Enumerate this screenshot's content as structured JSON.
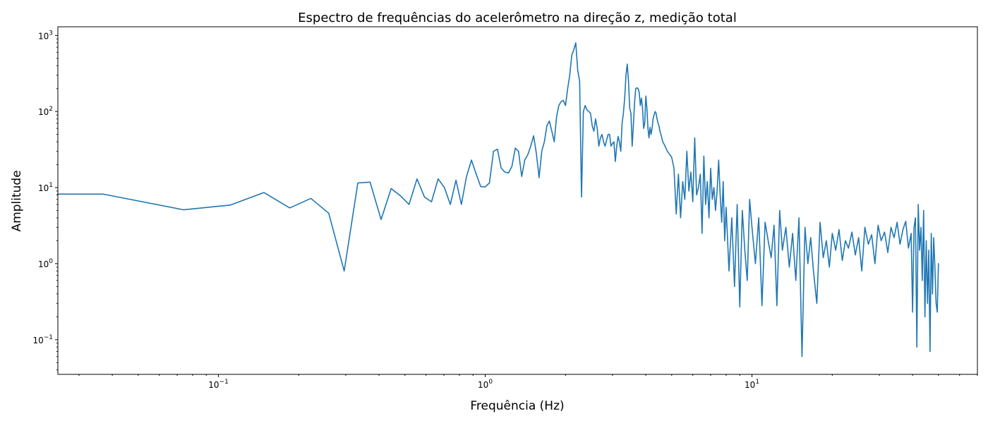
{
  "chart_data": {
    "type": "line",
    "title": "Espectro de frequências do acelerômetro na direção z, medição total",
    "xlabel": "Frequência (Hz)",
    "ylabel": "Amplitude",
    "xscale": "log",
    "yscale": "log",
    "xlim": [
      0.025,
      70
    ],
    "ylim": [
      0.035,
      1300
    ],
    "grid": false,
    "legend": "none",
    "color": "#1f77b4",
    "x_ticks": [
      {
        "value": 0.1,
        "base": "10",
        "exp": "−1"
      },
      {
        "value": 1,
        "base": "10",
        "exp": "0"
      },
      {
        "value": 10,
        "base": "10",
        "exp": "1"
      }
    ],
    "y_ticks": [
      {
        "value": 0.1,
        "base": "10",
        "exp": "−1"
      },
      {
        "value": 1,
        "base": "10",
        "exp": "0"
      },
      {
        "value": 10,
        "base": "10",
        "exp": "1"
      },
      {
        "value": 100,
        "base": "10",
        "exp": "2"
      },
      {
        "value": 1000,
        "base": "10",
        "exp": "3"
      }
    ],
    "series": [
      {
        "x": [
          0.025,
          0.037,
          0.074,
          0.111,
          0.148,
          0.185,
          0.222,
          0.259,
          0.296,
          0.333,
          0.37,
          0.407,
          0.444,
          0.481,
          0.518,
          0.555,
          0.592,
          0.629,
          0.666,
          0.703,
          0.74,
          0.777,
          0.814,
          0.851,
          0.888,
          0.925,
          0.962,
          1.0,
          1.037,
          1.074,
          1.111,
          1.148,
          1.185,
          1.222,
          1.259,
          1.296,
          1.333,
          1.37,
          1.407,
          1.444,
          1.481,
          1.518,
          1.555,
          1.592,
          1.629,
          1.666,
          1.703,
          1.74,
          1.777,
          1.814,
          1.851,
          1.888,
          1.925,
          1.962,
          2.0,
          2.037,
          2.074,
          2.111,
          2.148,
          2.185,
          2.222,
          2.259,
          2.296,
          2.333,
          2.37,
          2.407,
          2.444,
          2.481,
          2.518,
          2.555,
          2.592,
          2.629,
          2.666,
          2.703,
          2.74,
          2.777,
          2.814,
          2.851,
          2.888,
          2.925,
          2.962,
          3.0,
          3.037,
          3.074,
          3.111,
          3.148,
          3.185,
          3.222,
          3.259,
          3.296,
          3.333,
          3.37,
          3.407,
          3.444,
          3.481,
          3.518,
          3.555,
          3.592,
          3.629,
          3.666,
          3.703,
          3.74,
          3.777,
          3.814,
          3.851,
          3.888,
          3.925,
          3.962,
          4.0,
          4.037,
          4.074,
          4.111,
          4.148,
          4.185,
          4.222,
          4.259,
          4.296,
          4.333,
          4.37,
          4.407,
          4.444,
          4.481,
          4.518,
          4.555,
          4.592,
          4.629,
          4.666,
          4.703,
          4.74,
          4.777,
          4.814,
          4.851,
          4.888,
          4.925,
          4.962,
          5.0,
          5.1,
          5.2,
          5.3,
          5.4,
          5.5,
          5.6,
          5.7,
          5.8,
          5.9,
          6.0,
          6.1,
          6.2,
          6.3,
          6.4,
          6.5,
          6.6,
          6.7,
          6.8,
          6.9,
          7.0,
          7.1,
          7.2,
          7.3,
          7.4,
          7.5,
          7.6,
          7.7,
          7.8,
          7.9,
          8.0,
          8.2,
          8.4,
          8.6,
          8.8,
          9.0,
          9.2,
          9.4,
          9.6,
          9.8,
          10.0,
          10.3,
          10.6,
          10.9,
          11.2,
          11.5,
          11.8,
          12.1,
          12.4,
          12.7,
          13.0,
          13.4,
          13.8,
          14.2,
          14.6,
          15.0,
          15.4,
          15.8,
          16.2,
          16.6,
          17.0,
          17.5,
          18.0,
          18.5,
          19.0,
          19.5,
          20.0,
          20.6,
          21.2,
          21.8,
          22.4,
          23.0,
          23.7,
          24.4,
          25.1,
          25.8,
          26.5,
          27.3,
          28.1,
          28.9,
          29.7,
          30.5,
          31.4,
          32.3,
          33.2,
          34.1,
          35.0,
          35.9,
          36.8,
          37.7,
          38.6,
          39.5,
          40.0,
          40.5,
          41.0,
          41.5,
          42.0,
          42.5,
          43.0,
          43.5,
          44.0,
          44.5,
          45.0,
          45.5,
          46.0,
          46.5,
          47.0,
          47.5,
          48.0,
          48.5,
          49.0,
          49.5,
          50.0
        ],
        "values": [
          8.2,
          8.2,
          5.1,
          5.9,
          8.6,
          5.4,
          7.2,
          4.6,
          0.8,
          11.5,
          11.8,
          3.8,
          9.7,
          7.8,
          6.0,
          13.0,
          7.5,
          6.5,
          13.0,
          10.0,
          6.0,
          12.5,
          6.0,
          14.0,
          23.0,
          15.0,
          10.3,
          10.2,
          11.5,
          30.0,
          32.0,
          18.0,
          16.0,
          15.5,
          19.0,
          33.0,
          30.0,
          14.0,
          23.0,
          27.0,
          35.0,
          48.0,
          28.0,
          13.5,
          30.0,
          40.0,
          65.0,
          75.0,
          55.0,
          40.0,
          85.0,
          120.0,
          135.0,
          140.0,
          120.0,
          200.0,
          300.0,
          550.0,
          650.0,
          800.0,
          350.0,
          250.0,
          7.5,
          100.0,
          120.0,
          105.0,
          100.0,
          95.0,
          65.0,
          55.0,
          80.0,
          60.0,
          35.0,
          45.0,
          50.0,
          40.0,
          35.0,
          42.0,
          50.0,
          50.0,
          35.0,
          38.0,
          40.0,
          22.0,
          35.0,
          47.0,
          40.0,
          30.0,
          70.0,
          95.0,
          150.0,
          300.0,
          420.0,
          250.0,
          110.0,
          95.0,
          35.0,
          65.0,
          130.0,
          200.0,
          205.0,
          200.0,
          180.0,
          120.0,
          150.0,
          110.0,
          60.0,
          70.0,
          160.0,
          110.0,
          60.0,
          45.0,
          62.0,
          50.0,
          60.0,
          80.0,
          90.0,
          100.0,
          95.0,
          80.0,
          70.0,
          65.0,
          55.0,
          50.0,
          45.0,
          40.0,
          38.0,
          36.0,
          34.0,
          32.0,
          30.0,
          29.0,
          28.0,
          27.0,
          26.0,
          25.0,
          18.0,
          4.5,
          15.0,
          4.0,
          12.0,
          7.0,
          30.0,
          9.0,
          16.0,
          6.5,
          45.0,
          8.0,
          10.0,
          15.0,
          2.5,
          26.0,
          6.0,
          12.0,
          4.0,
          18.0,
          7.0,
          10.0,
          5.0,
          9.0,
          23.0,
          8.0,
          3.5,
          12.0,
          2.0,
          5.5,
          0.8,
          4.0,
          0.5,
          6.0,
          0.27,
          5.0,
          1.5,
          0.6,
          7.0,
          3.0,
          1.0,
          4.0,
          0.28,
          3.5,
          2.0,
          1.2,
          3.2,
          0.28,
          5.0,
          1.5,
          3.0,
          0.9,
          2.5,
          0.6,
          4.0,
          0.06,
          3.0,
          1.0,
          2.2,
          0.8,
          0.3,
          3.5,
          1.2,
          2.0,
          0.9,
          2.5,
          1.5,
          2.8,
          1.1,
          2.0,
          1.6,
          2.6,
          1.3,
          2.2,
          0.8,
          3.0,
          1.8,
          2.4,
          1.0,
          3.2,
          2.0,
          2.6,
          1.4,
          3.0,
          2.2,
          3.5,
          1.8,
          2.8,
          3.6,
          1.6,
          2.5,
          0.23,
          3.0,
          4.0,
          0.08,
          6.0,
          1.5,
          3.0,
          0.6,
          5.0,
          0.2,
          2.0,
          0.3,
          1.5,
          0.07,
          2.5,
          0.4,
          2.2,
          0.9,
          0.3,
          0.23,
          1.0
        ]
      }
    ]
  }
}
